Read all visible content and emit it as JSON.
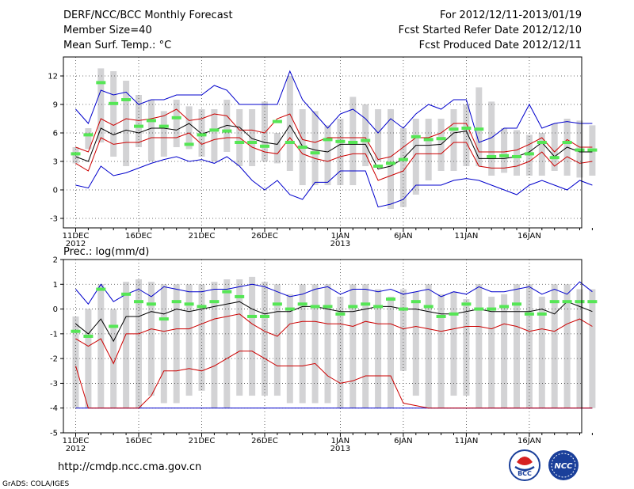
{
  "header": {
    "title": "DERF/NCC/BCC Monthly Forecast",
    "member_size": "Member Size=40",
    "variable": "Mean Surf. Temp.: °C",
    "period": "For 2012/12/11-2013/01/19",
    "fcst_started": "Fcst Started Refer Date 2012/12/10",
    "fcst_produced": "Fcst Produced Date 2012/12/11"
  },
  "footer": {
    "url": "http://cmdp.ncc.cma.gov.cn",
    "credit": "GrADS: COLA/IGES",
    "logo_left_text": "BCC",
    "logo_right_text": "NCC"
  },
  "colors": {
    "boxes": "#d3d3d5",
    "obs_marker": "#55e655",
    "mean_line": "#000000",
    "inner_band": "#cc0000",
    "outer_band": "#0000cc",
    "grid": "#444444"
  },
  "chart_data": [
    {
      "type": "line",
      "title": "Mean Surf. Temp.: °C",
      "x_start_day": 1,
      "x_tick_days": [
        1,
        6,
        11,
        16,
        22,
        27,
        32,
        37,
        42
      ],
      "x_tick_labels": [
        "11DEC",
        "16DEC",
        "21DEC",
        "26DEC",
        "1JAN",
        "6JAN",
        "11JAN",
        "16JAN"
      ],
      "x_tick_labels_at_days": [
        1,
        6,
        11,
        16,
        22,
        27,
        32,
        37
      ],
      "x_year_labels": [
        {
          "day": 1,
          "label": "2012"
        },
        {
          "day": 22,
          "label": "2013"
        }
      ],
      "ylim": [
        -4,
        14
      ],
      "yticks": [
        -3,
        0,
        3,
        6,
        9,
        12
      ],
      "series": [
        {
          "name": "box_high",
          "values": [
            4.5,
            6.5,
            12.8,
            12.5,
            11.5,
            10.0,
            9.5,
            8.3,
            9.5,
            8.8,
            8.5,
            8.5,
            9.5,
            8.5,
            8.5,
            9.3,
            6.0,
            12.0,
            8.5,
            8.3,
            6.8,
            7.5,
            9.8,
            9.0,
            8.5,
            8.5,
            6.5,
            7.5,
            7.5,
            7.5,
            8.5,
            9.0,
            10.8,
            9.3,
            6.5,
            6.3,
            5.8,
            6.0,
            7.0,
            7.5,
            7.3,
            6.8
          ]
        },
        {
          "name": "box_low",
          "values": [
            2.8,
            4.3,
            5.0,
            3.5,
            2.5,
            4.5,
            3.0,
            3.5,
            4.5,
            4.3,
            3.5,
            3.0,
            4.0,
            2.5,
            2.5,
            3.0,
            2.8,
            2.0,
            0.5,
            0.5,
            0.5,
            0.5,
            0.5,
            2.5,
            3.0,
            -2.0,
            -1.8,
            -0.5,
            1.0,
            2.0,
            2.0,
            2.5,
            2.5,
            1.5,
            1.8,
            1.5,
            1.5,
            1.5,
            2.0,
            1.5,
            1.3,
            1.5
          ]
        },
        {
          "name": "observed",
          "values": [
            3.8,
            5.8,
            11.3,
            9.1,
            9.5,
            6.7,
            7.3,
            6.7,
            7.6,
            4.8,
            5.8,
            6.3,
            6.2,
            5.0,
            5.0,
            4.6,
            7.2,
            5.0,
            4.5,
            3.9,
            5.3,
            5.1,
            5.0,
            5.2,
            2.5,
            2.8,
            3.2,
            5.6,
            5.3,
            5.4,
            6.4,
            6.5,
            6.4,
            3.5,
            3.6,
            3.5,
            3.8,
            5.0,
            3.4,
            5.0,
            4.2,
            4.2
          ]
        },
        {
          "name": "mean",
          "values": [
            3.5,
            3.0,
            6.5,
            5.8,
            6.3,
            6.0,
            6.5,
            6.5,
            6.3,
            7.0,
            5.9,
            6.3,
            6.8,
            6.6,
            5.4,
            5.0,
            4.8,
            6.8,
            4.6,
            4.2,
            4.0,
            4.8,
            4.8,
            4.8,
            2.2,
            2.5,
            3.3,
            4.7,
            4.7,
            4.8,
            6.0,
            6.2,
            3.3,
            3.3,
            3.3,
            3.5,
            4.0,
            5.0,
            3.5,
            4.5,
            4.0,
            4.0
          ]
        },
        {
          "name": "inner_high",
          "values": [
            4.5,
            4.0,
            7.5,
            6.8,
            7.5,
            7.3,
            7.5,
            7.8,
            8.5,
            7.3,
            7.5,
            8.0,
            7.8,
            6.3,
            6.3,
            6.0,
            7.5,
            8.0,
            5.3,
            5.0,
            5.5,
            5.5,
            5.5,
            5.5,
            3.2,
            3.5,
            4.5,
            5.5,
            5.5,
            6.0,
            7.0,
            7.0,
            4.0,
            4.0,
            4.0,
            4.2,
            4.8,
            5.5,
            4.0,
            5.3,
            4.5,
            4.5
          ]
        },
        {
          "name": "inner_low",
          "values": [
            2.8,
            2.0,
            5.5,
            4.8,
            5.0,
            5.0,
            5.5,
            5.5,
            5.5,
            6.0,
            4.8,
            5.3,
            5.5,
            5.5,
            4.5,
            4.0,
            3.8,
            5.5,
            3.8,
            3.3,
            3.0,
            3.5,
            3.8,
            3.8,
            1.0,
            1.5,
            2.0,
            3.8,
            3.8,
            3.8,
            5.0,
            5.0,
            2.5,
            2.3,
            2.3,
            2.5,
            3.0,
            4.0,
            2.5,
            3.5,
            2.8,
            3.0
          ]
        },
        {
          "name": "outer_high",
          "values": [
            8.5,
            7.0,
            10.5,
            10.0,
            10.3,
            9.0,
            9.5,
            9.5,
            10.0,
            10.0,
            10.0,
            11.0,
            10.5,
            9.0,
            9.0,
            9.0,
            9.0,
            12.5,
            9.5,
            8.0,
            6.5,
            8.0,
            8.5,
            7.5,
            6.0,
            7.5,
            6.5,
            8.0,
            9.0,
            8.5,
            9.5,
            9.5,
            5.0,
            5.5,
            6.5,
            6.5,
            9.0,
            6.5,
            7.0,
            7.2,
            7.0,
            7.0
          ]
        },
        {
          "name": "outer_low",
          "values": [
            0.5,
            0.2,
            2.5,
            1.5,
            1.8,
            2.3,
            2.8,
            3.2,
            3.5,
            3.0,
            3.2,
            2.8,
            3.5,
            2.5,
            1.0,
            0.0,
            1.0,
            -0.5,
            -1.0,
            0.8,
            0.8,
            2.0,
            2.0,
            2.0,
            -1.8,
            -1.5,
            -1.0,
            0.5,
            0.5,
            0.5,
            1.0,
            1.2,
            1.0,
            0.5,
            0.0,
            -0.5,
            0.5,
            1.0,
            0.5,
            0.0,
            1.0,
            0.5
          ]
        }
      ]
    },
    {
      "type": "line",
      "title": "Prec.: log(mm/d)",
      "x_start_day": 1,
      "x_tick_labels": [
        "11DEC",
        "16DEC",
        "21DEC",
        "26DEC",
        "1JAN",
        "6JAN",
        "11JAN",
        "16JAN"
      ],
      "x_tick_labels_at_days": [
        1,
        6,
        11,
        16,
        22,
        27,
        32,
        37
      ],
      "x_year_labels": [
        {
          "day": 1,
          "label": "2012"
        },
        {
          "day": 22,
          "label": "2013"
        }
      ],
      "ylim": [
        -5,
        2
      ],
      "yticks": [
        -5,
        -4,
        -3,
        -2,
        -1,
        0,
        1,
        2
      ],
      "series": [
        {
          "name": "box_high",
          "values": [
            -0.3,
            0.0,
            1.0,
            0.0,
            1.1,
            1.2,
            1.1,
            1.0,
            1.0,
            1.0,
            1.0,
            1.1,
            1.2,
            1.2,
            1.3,
            1.1,
            1.0,
            0.6,
            1.0,
            1.0,
            1.0,
            0.5,
            1.0,
            1.0,
            0.8,
            0.5,
            0.8,
            0.7,
            1.0,
            0.6,
            0.7,
            0.4,
            1.0,
            0.5,
            0.6,
            1.0,
            1.0,
            0.5,
            1.0,
            1.0,
            0.8,
            0.8
          ]
        },
        {
          "name": "box_low",
          "values": [
            -4.0,
            -4.0,
            -4.0,
            -4.0,
            -4.0,
            -4.0,
            -3.5,
            -3.8,
            -3.8,
            -3.5,
            -3.3,
            -4.0,
            -4.0,
            -3.5,
            -3.5,
            -3.5,
            -3.5,
            -3.8,
            -3.8,
            -3.8,
            -3.8,
            -4.0,
            -4.0,
            -4.0,
            -4.0,
            -4.0,
            -2.5,
            -3.5,
            -4.0,
            -4.0,
            -3.5,
            -3.5,
            -4.0,
            -4.0,
            -4.0,
            -4.0,
            -4.0,
            -4.0,
            -4.0,
            -4.0,
            -4.0,
            -4.0
          ]
        },
        {
          "name": "observed",
          "values": [
            -0.9,
            -1.1,
            0.8,
            -0.7,
            0.6,
            0.3,
            0.2,
            -0.4,
            0.3,
            0.2,
            0.1,
            0.3,
            0.7,
            0.5,
            -0.3,
            -0.3,
            0.2,
            0.0,
            0.2,
            0.1,
            0.1,
            -0.2,
            0.1,
            0.2,
            0.1,
            0.4,
            0.0,
            0.3,
            0.1,
            -0.3,
            -0.2,
            0.2,
            0.0,
            0.0,
            0.1,
            0.2,
            -0.2,
            -0.2,
            0.3,
            0.3,
            0.3,
            0.3
          ]
        },
        {
          "name": "mean",
          "values": [
            -0.6,
            -1.0,
            -0.4,
            -1.3,
            -0.3,
            -0.3,
            -0.1,
            -0.2,
            0.0,
            -0.1,
            0.0,
            0.1,
            0.2,
            0.3,
            0.0,
            -0.2,
            -0.1,
            -0.1,
            0.1,
            0.1,
            0.0,
            -0.1,
            -0.1,
            0.0,
            0.1,
            0.1,
            0.0,
            0.0,
            -0.1,
            -0.2,
            -0.2,
            -0.1,
            0.0,
            -0.1,
            -0.1,
            -0.1,
            -0.1,
            0.0,
            -0.2,
            0.3,
            0.1,
            -0.1
          ]
        },
        {
          "name": "inner_low",
          "values": [
            -2.3,
            -4.0,
            -4.0,
            -4.0,
            -4.0,
            -4.0,
            -3.5,
            -2.5,
            -2.5,
            -2.4,
            -2.5,
            -2.3,
            -2.0,
            -1.7,
            -1.7,
            -2.0,
            -2.3,
            -2.3,
            -2.3,
            -2.2,
            -2.7,
            -3.0,
            -2.9,
            -2.7,
            -2.7,
            -2.7,
            -3.8,
            -3.9,
            -4.0,
            -4.0,
            -4.0,
            -4.0,
            -4.0,
            -4.0,
            -4.0,
            -4.0,
            -4.0,
            -4.0,
            -4.0,
            -4.0,
            -4.0,
            -4.0
          ]
        },
        {
          "name": "inner_high",
          "values": [
            -1.2,
            -1.5,
            -1.2,
            -2.2,
            -1.0,
            -1.0,
            -0.8,
            -0.9,
            -0.8,
            -0.8,
            -0.6,
            -0.4,
            -0.3,
            -0.2,
            -0.6,
            -0.9,
            -1.1,
            -0.6,
            -0.5,
            -0.5,
            -0.6,
            -0.6,
            -0.7,
            -0.5,
            -0.6,
            -0.6,
            -0.8,
            -0.7,
            -0.8,
            -0.9,
            -0.8,
            -0.7,
            -0.7,
            -0.8,
            -0.6,
            -0.7,
            -0.9,
            -0.8,
            -0.9,
            -0.6,
            -0.4,
            -0.7
          ]
        },
        {
          "name": "outer_high",
          "values": [
            0.8,
            0.2,
            1.0,
            0.3,
            0.6,
            0.8,
            0.5,
            0.9,
            0.8,
            0.7,
            0.7,
            0.8,
            0.8,
            0.9,
            1.0,
            0.9,
            0.7,
            0.5,
            0.6,
            0.8,
            0.9,
            0.6,
            0.8,
            0.8,
            0.7,
            0.8,
            0.6,
            0.7,
            0.8,
            0.5,
            0.7,
            0.6,
            0.9,
            0.7,
            0.7,
            0.8,
            0.9,
            0.6,
            0.8,
            0.6,
            1.1,
            0.7
          ]
        }
      ],
      "floor_line": {
        "name": "outer_low",
        "value": -4.0
      }
    }
  ]
}
